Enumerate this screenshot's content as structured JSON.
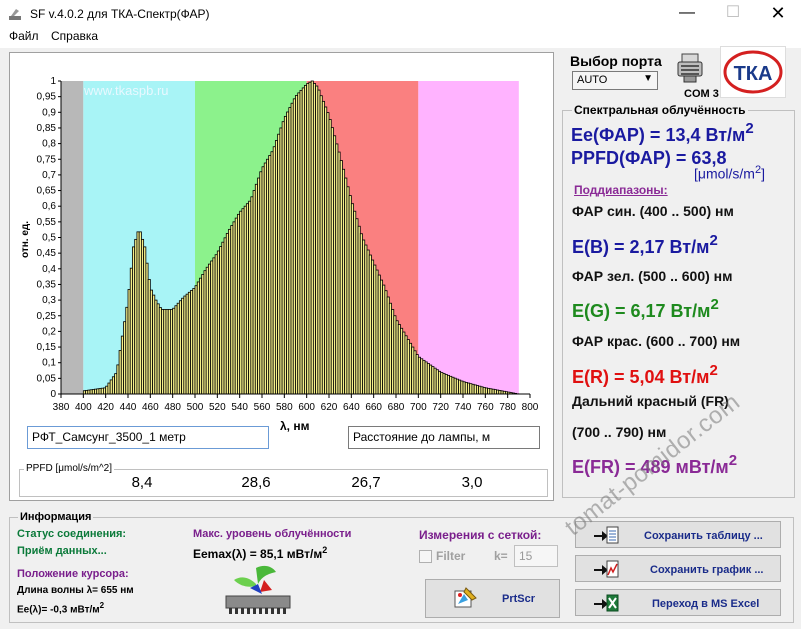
{
  "window": {
    "title": "SF v.4.0.2 для ТКА-Спектр(ФАР)"
  },
  "menu": {
    "items": [
      "Файл",
      "Справка"
    ]
  },
  "chart_data": {
    "type": "bar",
    "ylabel": "отн. ед.",
    "xlabel": "λ, нм",
    "xlim": [
      380,
      800
    ],
    "ylim": [
      0,
      1
    ],
    "xticks": [
      380,
      400,
      420,
      440,
      460,
      480,
      500,
      520,
      540,
      560,
      580,
      600,
      620,
      640,
      660,
      680,
      700,
      720,
      740,
      760,
      780,
      800
    ],
    "yticks": [
      "0",
      "0,05",
      "0,1",
      "0,15",
      "0,2",
      "0,25",
      "0,3",
      "0,35",
      "0,4",
      "0,45",
      "0,5",
      "0,55",
      "0,6",
      "0,65",
      "0,7",
      "0,75",
      "0,8",
      "0,85",
      "0,9",
      "0,95",
      "1"
    ],
    "bands": [
      {
        "from": 380,
        "to": 400,
        "color": "#b8b8b8"
      },
      {
        "from": 400,
        "to": 500,
        "color": "#a8f4f6"
      },
      {
        "from": 500,
        "to": 600,
        "color": "#8cf28c"
      },
      {
        "from": 600,
        "to": 700,
        "color": "#fa8080"
      },
      {
        "from": 700,
        "to": 790,
        "color": "#ffb3ff"
      }
    ],
    "bar_fill": "#f5f08a",
    "bar_step_nm": 2,
    "x": [
      400,
      420,
      430,
      440,
      445,
      450,
      455,
      460,
      465,
      470,
      480,
      490,
      500,
      510,
      520,
      530,
      540,
      550,
      560,
      570,
      580,
      590,
      600,
      605,
      610,
      620,
      630,
      640,
      650,
      660,
      670,
      680,
      690,
      700,
      720,
      740,
      760,
      790
    ],
    "y": [
      0.01,
      0.02,
      0.07,
      0.3,
      0.47,
      0.53,
      0.47,
      0.34,
      0.3,
      0.27,
      0.27,
      0.31,
      0.34,
      0.4,
      0.45,
      0.52,
      0.58,
      0.62,
      0.72,
      0.78,
      0.88,
      0.95,
      0.99,
      1.0,
      0.98,
      0.89,
      0.76,
      0.62,
      0.5,
      0.42,
      0.34,
      0.24,
      0.18,
      0.12,
      0.07,
      0.04,
      0.02,
      0.0
    ],
    "watermark": "www.tkaspb.ru"
  },
  "fields": {
    "name_value": "РФТ_Самсунг_3500_1 метр",
    "distance_value": "Расстояние до лампы, м"
  },
  "ppfd": {
    "legend": "PPFD [μmol/s/m^2]",
    "values": [
      {
        "value": "8,4",
        "color": "#1a1aa0"
      },
      {
        "value": "28,6",
        "color": "#2bbf2b"
      },
      {
        "value": "26,7",
        "color": "#c81e1e"
      },
      {
        "value": "3,0",
        "color": "#7a1f8c"
      }
    ]
  },
  "port": {
    "label": "Выбор порта",
    "selected": "AUTO",
    "com": "COM 3",
    "logo_text": "ТКА"
  },
  "irradiance": {
    "legend": "Спектральная облучённость",
    "ee_far": "Ee(ФАР) = 13,4 Вт/м",
    "ppfd_far": "PPFD(ФАР) = 63,8",
    "ppfd_unit": "[μmol/s/m",
    "ppfd_unit_close": "]",
    "subranges": "Поддиапазоны:",
    "blue_range": "ФАР син. (400 .. 500) нм",
    "e_blue": "E(B) = 2,17 Вт/м",
    "green_range": "ФАР зел. (500 .. 600) нм",
    "e_green": "E(G) = 6,17 Вт/м",
    "red_range": "ФАР крас. (600 .. 700) нм",
    "e_red": "E(R) = 5,04 Вт/м",
    "fr_range_1": "Дальний красный (FR)",
    "fr_range_2": "(700 .. 790) нм",
    "e_fr": "E(FR) = 489 мВт/м",
    "sup2": "2",
    "colors": {
      "blue": "#1a1aa0",
      "green": "#1e8a1e",
      "red": "#e01010",
      "purple": "#8a2a96"
    }
  },
  "info": {
    "legend": "Информация",
    "conn_label": "Статус соединения:",
    "conn_value": "Приём данных...",
    "cursor_label": "Положение курсора:",
    "wavelength_text": "Длина волны λ= 655 нм",
    "ee_text": "Ee(λ)= -0,3 мВт/м",
    "max_label": "Макс. уровень облучённости",
    "max_value": "Eemax(λ) = 85,1 мВт/м",
    "grid_label": "Измерения с сеткой:",
    "filter_label": "Filter",
    "k_label": "k=",
    "k_value": "15"
  },
  "buttons": {
    "prtscr": "PrtScr",
    "save_table": "Сохранить таблицу ...",
    "save_graph": "Сохранить график ...",
    "excel": "Переход в MS Excel"
  },
  "watermark": "tomat-pomidor.com"
}
